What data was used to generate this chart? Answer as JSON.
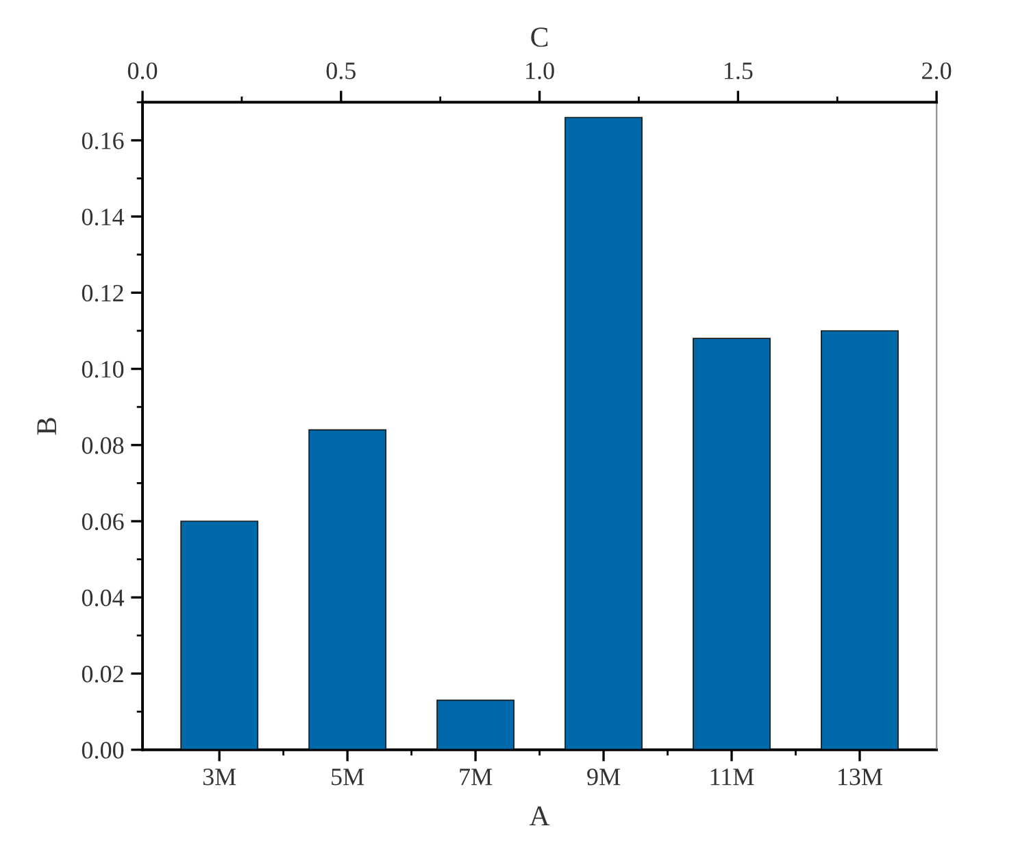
{
  "chart_data": {
    "type": "bar",
    "xlabel": "A",
    "ylabel": "B",
    "x2label": "C",
    "categories": [
      "3M",
      "5M",
      "7M",
      "9M",
      "11M",
      "13M"
    ],
    "values": [
      0.06,
      0.084,
      0.013,
      0.166,
      0.108,
      0.11
    ],
    "color": "#0069aa",
    "ylim": [
      0,
      0.17
    ],
    "yticks": [
      {
        "value": 0,
        "label": "0.00"
      },
      0.02,
      0.04,
      0.06,
      0.08,
      {
        "value": 0.1,
        "label": "0.10"
      },
      0.12,
      0.14,
      0.16
    ],
    "x2lim": [
      0,
      2
    ],
    "x2ticks": [
      {
        "value": 0,
        "label": "0.0"
      },
      0.5,
      {
        "value": 1,
        "label": "1.0"
      },
      1.5,
      {
        "value": 2,
        "label": "2.0"
      }
    ]
  }
}
